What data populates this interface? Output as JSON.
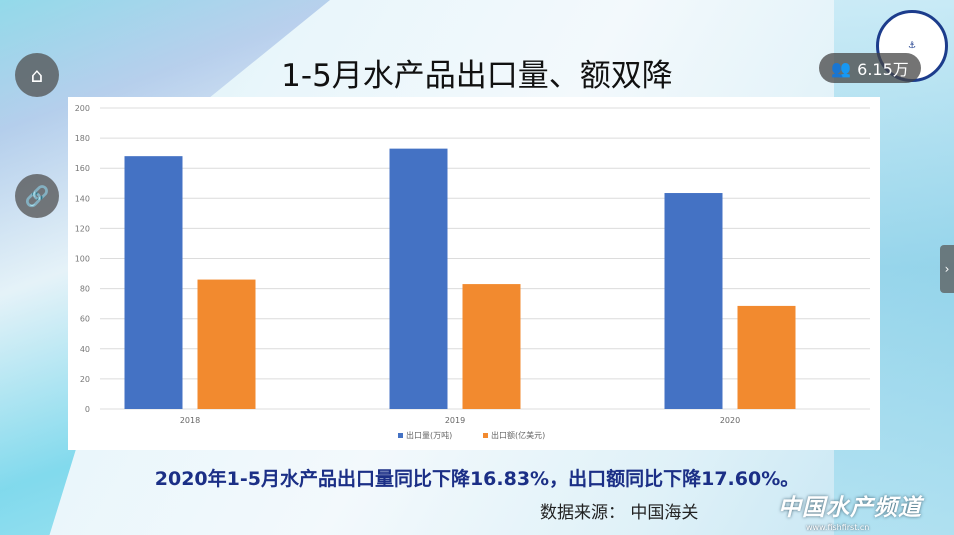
{
  "title": "1-5月水产品出口量、额双降",
  "summary": "2020年1-5月水产品出口量同比下降16.83%，出口额同比下降17.60%。",
  "source": "数据来源：  中国海关",
  "watermark": {
    "name": "中国水产频道",
    "url": "www.fishfirst.cn"
  },
  "viewer": {
    "views": "6.15万",
    "home_icon": "home-icon",
    "link_icon": "link-icon"
  },
  "colors": {
    "blue": "#4472c4",
    "orange": "#f28a2f"
  },
  "chart_data": {
    "type": "bar",
    "categories": [
      "2018",
      "2019",
      "2020"
    ],
    "series": [
      {
        "name": "出口量(万吨)",
        "values": [
          168,
          173,
          143.5
        ]
      },
      {
        "name": "出口额(亿美元)",
        "values": [
          86,
          83,
          68.5
        ]
      }
    ],
    "yticks": [
      "0",
      "20",
      "40",
      "60",
      "80",
      "100",
      "120",
      "140",
      "160",
      "180",
      "200"
    ],
    "ylim": [
      0,
      200
    ],
    "grid": true,
    "legend": "bottom"
  }
}
